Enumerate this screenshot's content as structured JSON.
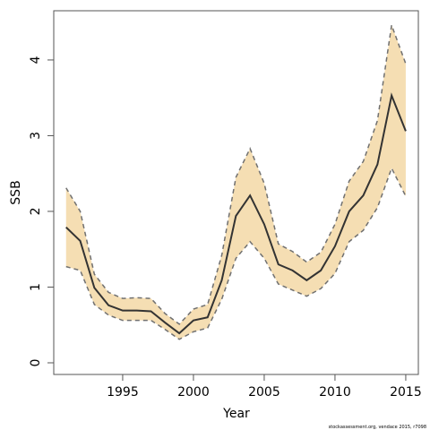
{
  "chart_data": {
    "type": "line",
    "xlabel": "Year",
    "ylabel": "SSB",
    "caption": "stockassessment.org, vendace 2015, r7098",
    "x": [
      1991,
      1992,
      1993,
      1994,
      1995,
      1996,
      1997,
      1998,
      1999,
      2000,
      2001,
      2002,
      2003,
      2004,
      2005,
      2006,
      2007,
      2008,
      2009,
      2010,
      2011,
      2012,
      2013,
      2014,
      2015
    ],
    "series": [
      {
        "color": "#333333",
        "band_color": "#f5deb3",
        "bound_color": "#707070",
        "values": [
          1.79,
          1.61,
          0.99,
          0.76,
          0.69,
          0.69,
          0.68,
          0.53,
          0.39,
          0.56,
          0.6,
          1.09,
          1.94,
          2.21,
          1.83,
          1.3,
          1.22,
          1.09,
          1.22,
          1.54,
          2.0,
          2.21,
          2.62,
          3.53,
          3.06
        ],
        "upper": [
          2.31,
          2.0,
          1.17,
          0.93,
          0.85,
          0.86,
          0.85,
          0.65,
          0.51,
          0.71,
          0.77,
          1.42,
          2.45,
          2.83,
          2.37,
          1.57,
          1.47,
          1.33,
          1.46,
          1.83,
          2.4,
          2.66,
          3.2,
          4.46,
          3.95
        ],
        "lower": [
          1.27,
          1.22,
          0.77,
          0.63,
          0.56,
          0.56,
          0.56,
          0.44,
          0.31,
          0.41,
          0.46,
          0.84,
          1.38,
          1.6,
          1.38,
          1.04,
          0.96,
          0.88,
          0.98,
          1.18,
          1.6,
          1.75,
          2.05,
          2.57,
          2.2
        ]
      }
    ],
    "xlim": [
      1990.13,
      2015.89
    ],
    "ylim": [
      -0.154,
      4.65
    ],
    "xticks": [
      1995,
      2000,
      2005,
      2010,
      2015
    ],
    "yticks": [
      0,
      1,
      2,
      3,
      4
    ]
  }
}
